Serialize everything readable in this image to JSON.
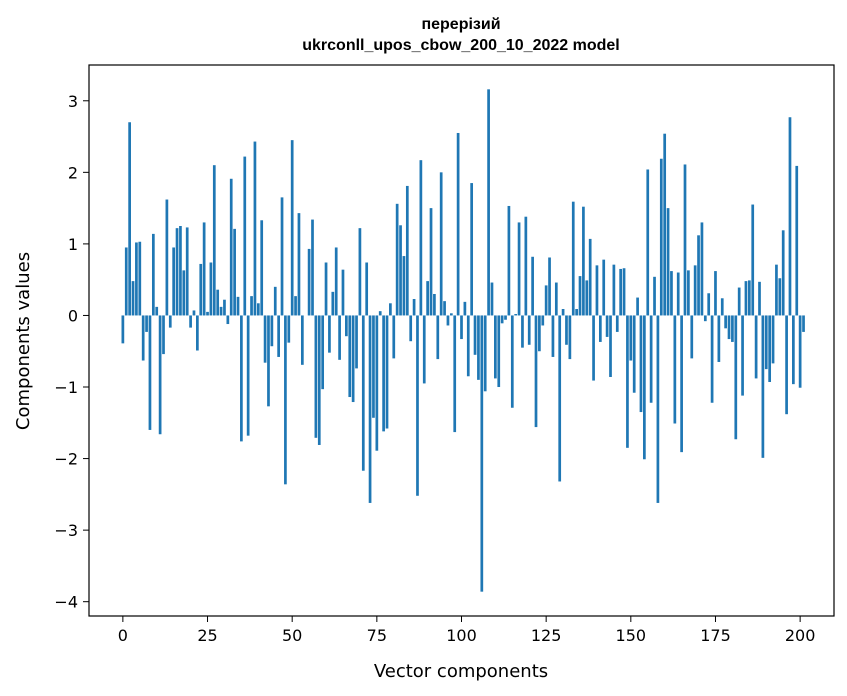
{
  "chart_data": {
    "type": "bar",
    "title": "перерізий",
    "subtitle": "ukrconll_upos_cbow_200_10_2022 model",
    "xlabel": "Vector components",
    "ylabel": "Components values",
    "xlim": [
      -10,
      210
    ],
    "ylim": [
      -4.2,
      3.5
    ],
    "x_ticks": [
      0,
      25,
      50,
      75,
      100,
      125,
      150,
      175,
      200
    ],
    "y_ticks": [
      -4,
      -3,
      -2,
      -1,
      0,
      1,
      2,
      3
    ],
    "grid": false,
    "legend": "none",
    "bar_color": "#1f77b4",
    "values": [
      -0.39,
      0.95,
      2.7,
      0.48,
      1.02,
      1.03,
      -0.63,
      -0.23,
      -1.6,
      1.14,
      0.12,
      -1.66,
      -0.54,
      1.62,
      -0.17,
      0.95,
      1.22,
      1.25,
      0.63,
      1.23,
      -0.17,
      0.07,
      -0.49,
      0.72,
      1.3,
      0.05,
      0.74,
      2.1,
      0.36,
      0.12,
      0.22,
      -0.12,
      1.91,
      1.21,
      0.26,
      -1.76,
      2.22,
      -1.68,
      0.27,
      2.43,
      0.17,
      1.33,
      -0.66,
      -1.27,
      -0.43,
      0.4,
      -0.58,
      1.65,
      -2.36,
      -0.38,
      2.45,
      0.27,
      1.43,
      -0.69,
      0.0,
      0.93,
      1.34,
      -1.71,
      -1.81,
      -1.03,
      0.74,
      -0.52,
      0.33,
      0.95,
      -0.62,
      0.64,
      -0.29,
      -1.14,
      -1.21,
      -0.74,
      1.22,
      -2.17,
      0.74,
      -2.62,
      -1.43,
      -1.89,
      0.06,
      -1.62,
      -1.58,
      0.17,
      -0.6,
      1.56,
      1.26,
      0.83,
      1.81,
      -0.36,
      0.23,
      -2.52,
      2.17,
      -0.95,
      0.48,
      1.5,
      0.3,
      -0.61,
      2.0,
      0.2,
      -0.14,
      0.03,
      -1.63,
      2.55,
      -0.33,
      0.19,
      -0.85,
      1.85,
      -0.55,
      -0.9,
      -3.86,
      -1.06,
      3.16,
      0.46,
      -0.88,
      -1.0,
      -0.11,
      -0.06,
      1.53,
      -1.29,
      0.02,
      1.3,
      -0.45,
      1.38,
      -0.41,
      0.82,
      -1.56,
      -0.5,
      -0.14,
      0.42,
      0.81,
      -0.58,
      0.46,
      -2.32,
      0.09,
      -0.41,
      -0.61,
      1.59,
      0.09,
      0.55,
      1.52,
      0.49,
      1.07,
      -0.91,
      0.7,
      -0.37,
      0.78,
      -0.3,
      -0.86,
      0.71,
      -0.23,
      0.65,
      0.66,
      -1.85,
      -0.63,
      -1.08,
      0.25,
      -1.35,
      -2.01,
      2.04,
      -1.22,
      0.54,
      -2.62,
      2.19,
      2.54,
      1.5,
      0.62,
      -1.51,
      0.6,
      -1.91,
      2.11,
      0.63,
      -0.6,
      0.7,
      1.12,
      1.3,
      -0.08,
      0.31,
      -1.22,
      0.62,
      -0.65,
      0.24,
      -0.18,
      -0.33,
      -0.37,
      -1.73,
      0.39,
      -1.12,
      0.48,
      0.49,
      1.55,
      -0.88,
      0.47,
      -1.99,
      -0.75,
      -0.93,
      -0.67,
      0.71,
      0.52,
      1.19,
      -1.38,
      2.77,
      -0.96,
      2.09,
      -1.01,
      -0.23
    ]
  }
}
